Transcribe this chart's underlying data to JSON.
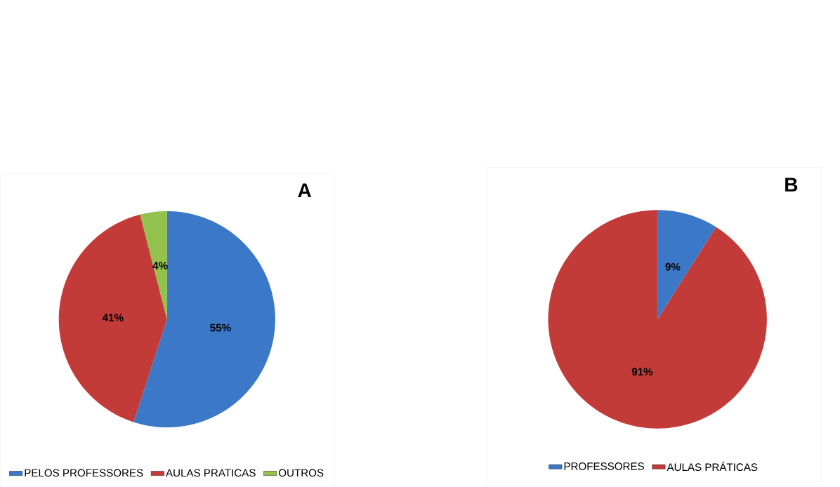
{
  "chart_data": [
    {
      "type": "pie",
      "title": "A",
      "categories": [
        "PELOS PROFESSORES",
        "AULAS PRATICAS",
        "OUTROS"
      ],
      "values": [
        55,
        41,
        4
      ],
      "colors": [
        "#3b78c8",
        "#c23b38",
        "#93c14d"
      ],
      "value_labels": [
        "55%",
        "41%",
        "4%"
      ],
      "legend": "bottom"
    },
    {
      "type": "pie",
      "title": "B",
      "categories": [
        "PROFESSORES",
        "AULAS PRÁTICAS"
      ],
      "values": [
        9,
        91
      ],
      "colors": [
        "#3b78c8",
        "#c23b38"
      ],
      "value_labels": [
        "9%",
        "91%"
      ],
      "legend": "bottom"
    }
  ]
}
